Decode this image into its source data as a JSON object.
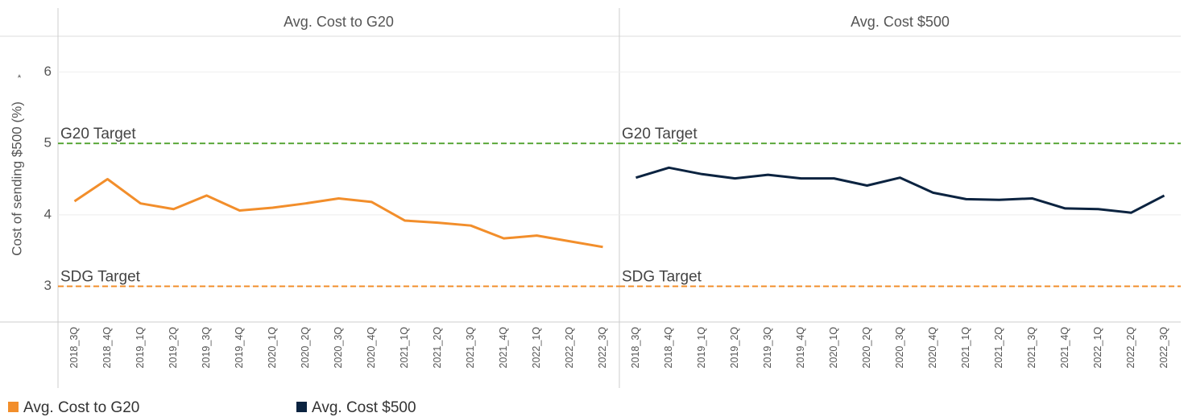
{
  "chart_data": {
    "type": "line",
    "y_label": "Cost of sending $500 (%)",
    "categories": [
      "2018_3Q",
      "2018_4Q",
      "2019_1Q",
      "2019_2Q",
      "2019_3Q",
      "2019_4Q",
      "2020_1Q",
      "2020_2Q",
      "2020_3Q",
      "2020_4Q",
      "2021_1Q",
      "2021_2Q",
      "2021_3Q",
      "2021_4Q",
      "2022_1Q",
      "2022_2Q",
      "2022_3Q"
    ],
    "series": [
      {
        "name": "Avg. Cost to G20",
        "color": "#f28e2b",
        "values": [
          4.19,
          4.5,
          4.16,
          4.08,
          4.27,
          4.06,
          4.1,
          4.16,
          4.23,
          4.18,
          3.92,
          3.89,
          3.85,
          3.67,
          3.71,
          3.63,
          3.55
        ]
      },
      {
        "name": "Avg. Cost $500",
        "color": "#0b2340",
        "values": [
          4.52,
          4.66,
          4.57,
          4.51,
          4.56,
          4.51,
          4.51,
          4.41,
          4.52,
          4.31,
          4.22,
          4.21,
          4.23,
          4.09,
          4.08,
          4.03,
          4.27
        ]
      }
    ],
    "reference_lines": [
      {
        "label": "G20 Target",
        "value": 5,
        "color": "#5aa83a"
      },
      {
        "label": "SDG Target",
        "value": 3,
        "color": "#f28e2b"
      }
    ],
    "ylim": [
      2.5,
      6.5
    ],
    "yticks": [
      3,
      4,
      5,
      6
    ],
    "grid": true
  }
}
